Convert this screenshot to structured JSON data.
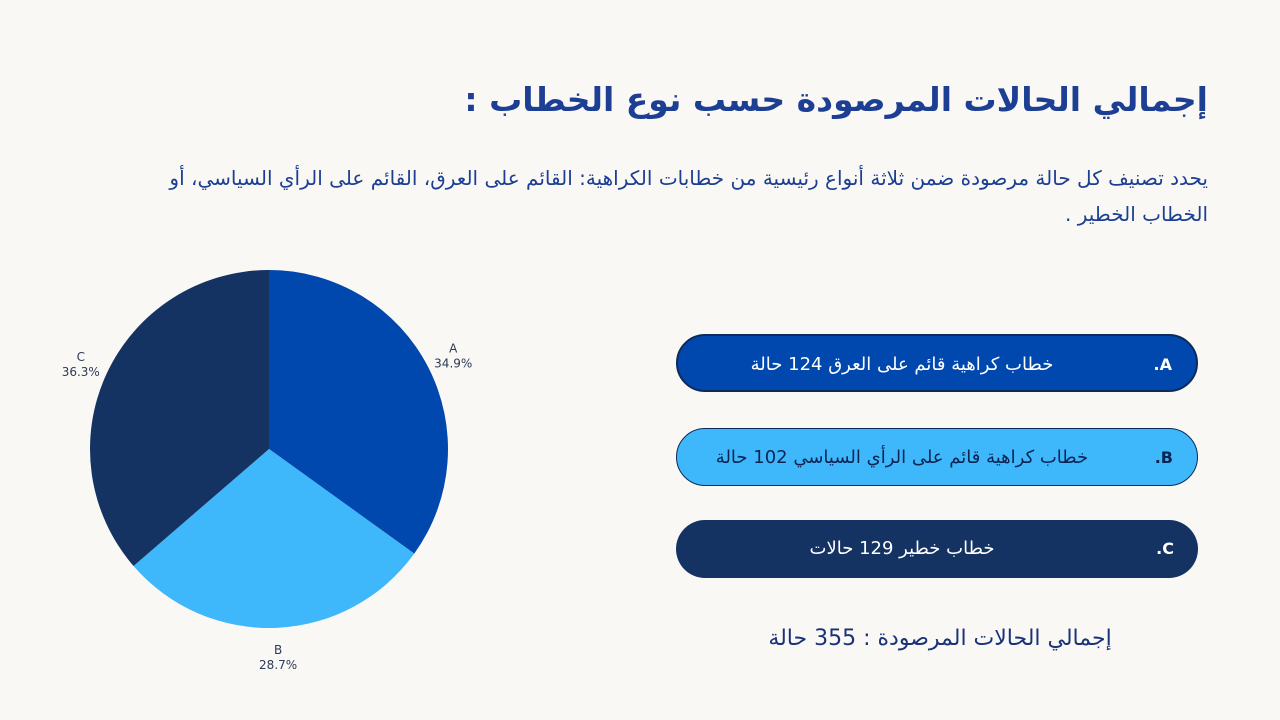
{
  "title": "إجمالي الحالات المرصودة حسب نوع الخطاب :",
  "description": "يحدد تصنيف كل حالة مرصودة ضمن ثلاثة أنواع رئيسية من خطابات الكراهية: القائم على العرق، القائم على الرأي السياسي، أو الخطاب الخطير .",
  "legend": [
    {
      "letter": ".A",
      "text": "خطاب كراهية قائم على العرق 124 حالة",
      "color": "#0048ad"
    },
    {
      "letter": ".B",
      "text": "خطاب كراهية قائم على الرأي السياسي 102 حالة",
      "color": "#3eb7fb"
    },
    {
      "letter": ".C",
      "text": "خطاب خطير 129 حالات",
      "color": "#143262"
    }
  ],
  "total": "إجمالي الحالات المرصودة : 355 حالة",
  "chart_data": {
    "type": "pie",
    "categories": [
      "A",
      "B",
      "C"
    ],
    "values": [
      34.9,
      28.7,
      36.3
    ],
    "labels": [
      "34.9%",
      "28.7%",
      "36.3%"
    ],
    "colors": [
      "#0048ad",
      "#3eb7fb",
      "#143262"
    ]
  }
}
